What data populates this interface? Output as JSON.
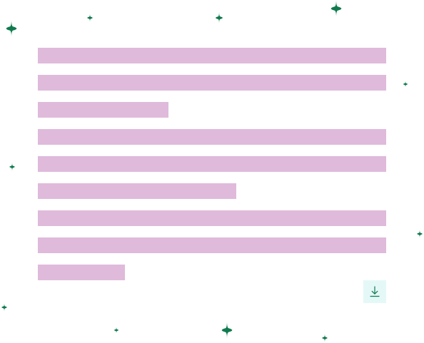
{
  "app": {
    "title": ""
  },
  "content": {
    "placeholder_lines": [
      {
        "fill_fraction": 1.0
      },
      {
        "fill_fraction": 1.0
      },
      {
        "fill_fraction": 0.375
      },
      {
        "fill_fraction": 1.0
      },
      {
        "fill_fraction": 1.0
      },
      {
        "fill_fraction": 0.57
      },
      {
        "fill_fraction": 1.0
      },
      {
        "fill_fraction": 1.0
      },
      {
        "fill_fraction": 0.25
      }
    ]
  },
  "decor": {
    "sparkle_icon": "sparkle-icon"
  },
  "actions": {
    "download": {
      "icon": "download-icon"
    }
  },
  "colors": {
    "placeholder_bar": "#dfbadb",
    "sparkle": "#0f7a4e",
    "download_bg": "#e5f8f8",
    "download_icon": "#0f7a4e"
  }
}
